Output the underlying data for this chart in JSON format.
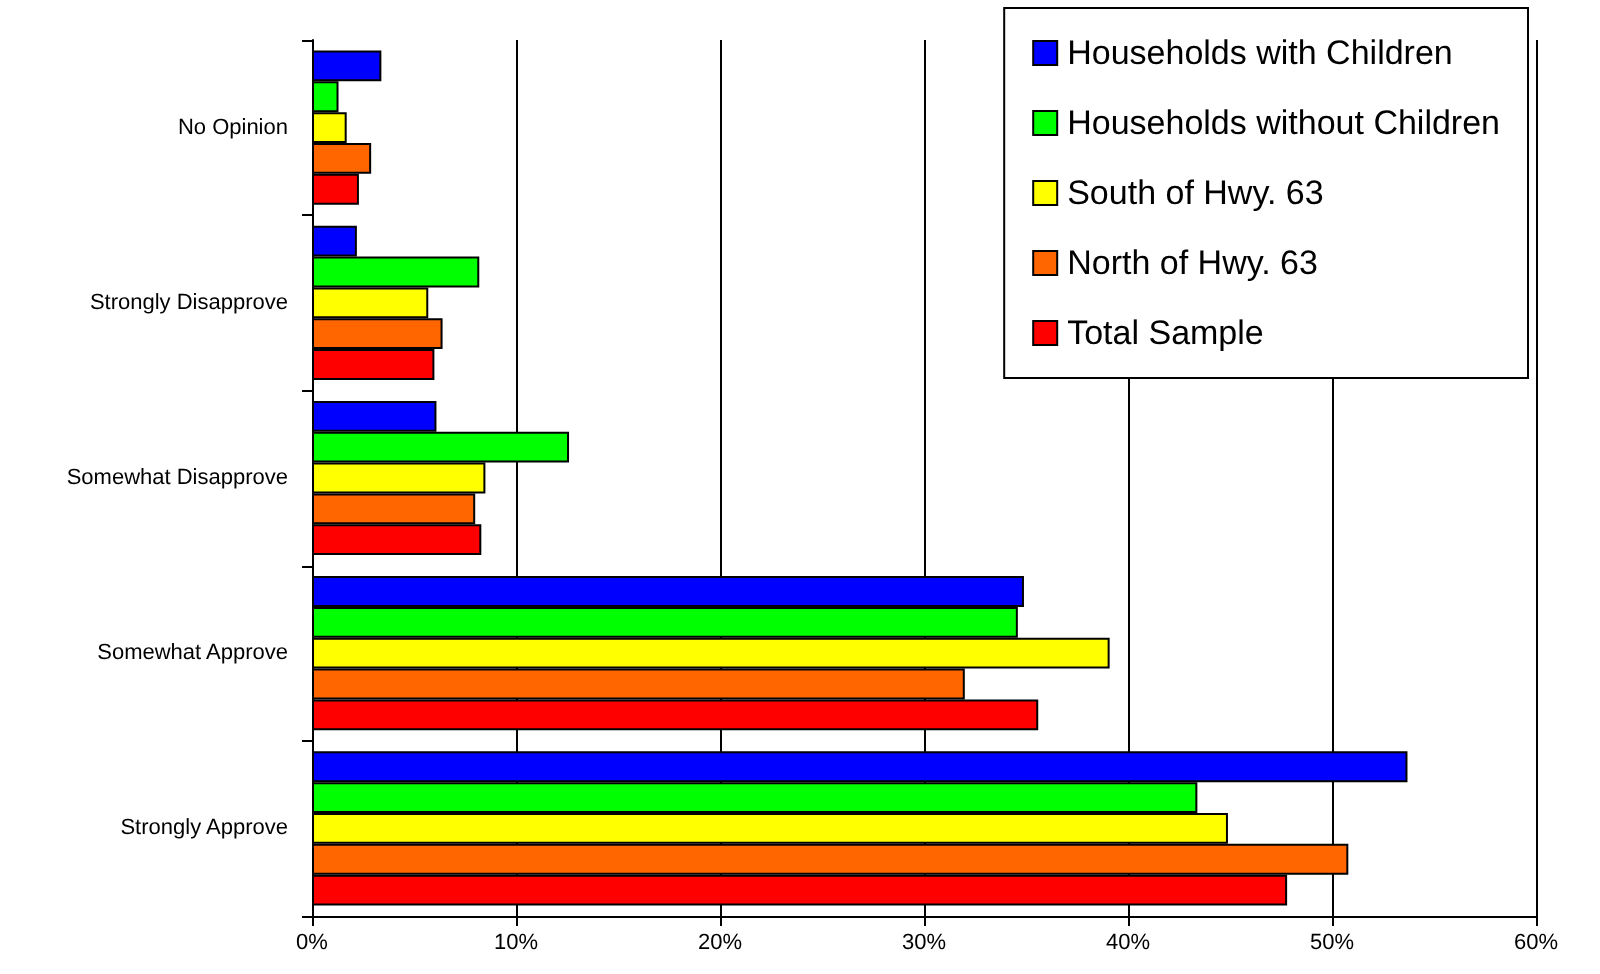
{
  "chart_data": {
    "type": "bar",
    "orientation": "horizontal",
    "categories": [
      "No Opinion",
      "Strongly Disapprove",
      "Somewhat Disapprove",
      "Somewhat Approve",
      "Strongly Approve"
    ],
    "series": [
      {
        "name": "Households with Children",
        "color": "#0000ff",
        "values": [
          3.4,
          2.2,
          6.1,
          34.9,
          53.7
        ]
      },
      {
        "name": "Households without Children",
        "color": "#00ff00",
        "values": [
          1.3,
          8.2,
          12.6,
          34.6,
          43.4
        ]
      },
      {
        "name": "South of Hwy. 63",
        "color": "#ffff00",
        "values": [
          1.7,
          5.7,
          8.5,
          39.1,
          44.9
        ]
      },
      {
        "name": "North of Hwy. 63",
        "color": "#ff6600",
        "values": [
          2.9,
          6.4,
          8.0,
          32.0,
          50.8
        ]
      },
      {
        "name": "Total Sample",
        "color": "#ff0000",
        "values": [
          2.3,
          6.0,
          8.3,
          35.6,
          47.8
        ]
      }
    ],
    "xlim": [
      0,
      60
    ],
    "xticks": [
      {
        "value": 0,
        "label": "0%"
      },
      {
        "value": 10,
        "label": "10%"
      },
      {
        "value": 20,
        "label": "20%"
      },
      {
        "value": 30,
        "label": "30%"
      },
      {
        "value": 40,
        "label": "40%"
      },
      {
        "value": 50,
        "label": "50%"
      },
      {
        "value": 60,
        "label": "60%"
      }
    ],
    "grid": "x",
    "legend": "top right"
  }
}
